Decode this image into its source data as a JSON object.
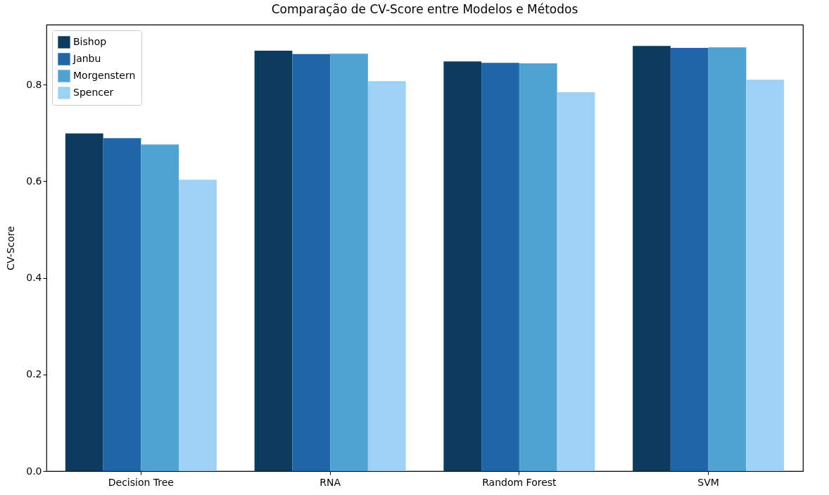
{
  "chart_data": {
    "type": "bar",
    "title": "Comparação de CV-Score entre Modelos e Métodos",
    "ylabel": "CV-Score",
    "categories": [
      "Decision Tree",
      "RNA",
      "Random Forest",
      "SVM"
    ],
    "series": [
      {
        "name": "Bishop",
        "color": "#0d3b5e",
        "values": [
          0.699,
          0.87,
          0.848,
          0.88
        ]
      },
      {
        "name": "Janbu",
        "color": "#1f65a8",
        "values": [
          0.689,
          0.863,
          0.845,
          0.876
        ]
      },
      {
        "name": "Morgenstern",
        "color": "#4ea3d2",
        "values": [
          0.676,
          0.864,
          0.844,
          0.877
        ]
      },
      {
        "name": "Spencer",
        "color": "#9dd1f5",
        "values": [
          0.603,
          0.807,
          0.784,
          0.81
        ]
      }
    ],
    "ylim": [
      0,
      0.924
    ],
    "yticks": [
      {
        "value": 0,
        "label": "0.0"
      },
      0.2,
      0.4,
      0.6,
      0.8
    ],
    "grid": false,
    "legend": "top left"
  }
}
